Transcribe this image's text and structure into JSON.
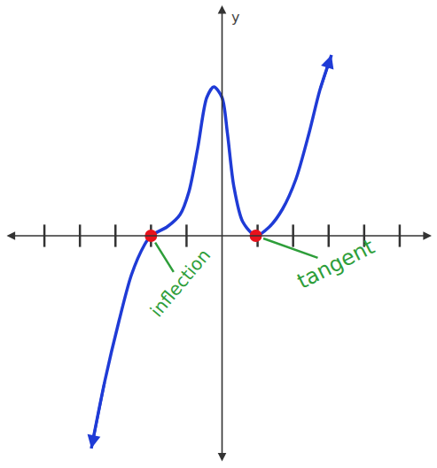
{
  "chart_data": {
    "type": "line",
    "x": [
      -3.68,
      -3.3,
      -2.9,
      -2.55,
      -2.18,
      -2,
      -1.55,
      -1.18,
      -0.93,
      -0.68,
      -0.43,
      -0.23,
      0,
      0.15,
      0.33,
      0.58,
      0.95,
      1.33,
      1.7,
      2.08,
      2.45,
      2.75,
      3.08
    ],
    "values": [
      -6.0,
      -4.1,
      -2.4,
      -1.1,
      -0.25,
      0,
      0.25,
      0.6,
      1.25,
      2.5,
      3.9,
      4.2,
      3.9,
      2.9,
      1.4,
      0.4,
      0,
      0.25,
      0.75,
      1.6,
      2.9,
      4.1,
      5.1
    ],
    "color": "#1f3bd6",
    "xlim": [
      -6.1,
      5.9
    ],
    "ylim": [
      -6.4,
      6.5
    ],
    "xticks": [
      -5,
      -4,
      -3,
      -2,
      -1,
      1,
      2,
      3,
      4,
      5
    ],
    "tick_labels": false,
    "grid": false,
    "y_label": "y",
    "points": {
      "x": [
        -2,
        0.95
      ],
      "y": [
        0,
        0
      ],
      "color": "#e8121c"
    },
    "annotations": [
      {
        "text": "inflection",
        "x": -2,
        "y": 0,
        "color": "#2e9e3a"
      },
      {
        "text": "tangent",
        "x": 0.95,
        "y": 0,
        "color": "#2e9e3a"
      }
    ]
  }
}
